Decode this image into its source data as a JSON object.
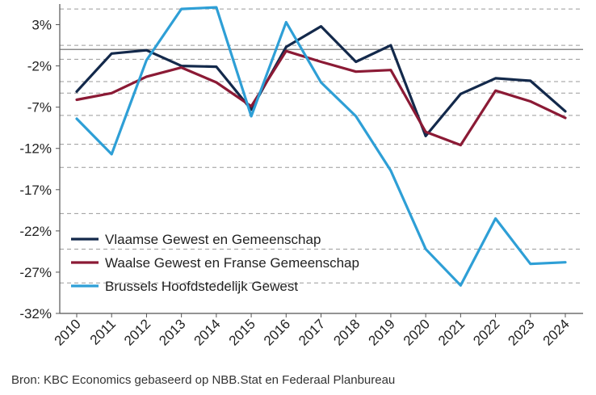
{
  "chart_data": {
    "type": "line",
    "title": "",
    "xlabel": "",
    "ylabel": "",
    "ylim": [
      -32,
      5.5
    ],
    "y_ticks": [
      3,
      -2,
      -7,
      -12,
      -17,
      -22,
      -27,
      -32
    ],
    "y_tick_labels": [
      "3%",
      "-2%",
      "-7%",
      "-12%",
      "-17%",
      "-22%",
      "-27%",
      "-32%"
    ],
    "categories": [
      "2010",
      "2011",
      "2012",
      "2013",
      "2014",
      "2015",
      "2016",
      "2017",
      "2018",
      "2019",
      "2020",
      "2021",
      "2022",
      "2023",
      "2024"
    ],
    "reference_line": 0,
    "dashed_gridlines": [
      4.9,
      0.5,
      -1.2,
      -3.9,
      -5.3,
      -8.0,
      -11.5,
      -14.3,
      -19.9,
      -24.2,
      -28.3
    ],
    "legend_position": "lower-left",
    "series": [
      {
        "name": "Vlaamse Gewest en Gemeenschap",
        "color": "#13294b",
        "values": [
          -5.1,
          -0.5,
          -0.1,
          -2.0,
          -2.1,
          -7.3,
          0.3,
          2.8,
          -1.5,
          0.5,
          -10.5,
          -5.4,
          -3.5,
          -3.8,
          -7.5
        ]
      },
      {
        "name": "Waalse Gewest en Franse Gemeenschap",
        "color": "#8b1a35",
        "values": [
          -6.1,
          -5.3,
          -3.3,
          -2.2,
          -4.0,
          -6.9,
          -0.2,
          -1.5,
          -2.7,
          -2.5,
          -10.0,
          -11.6,
          -5.0,
          -6.3,
          -8.3
        ]
      },
      {
        "name": "Brussels Hoofdstedelijk Gewest",
        "color": "#2e9fd6",
        "values": [
          -8.4,
          -12.7,
          -1.3,
          4.9,
          5.1,
          -8.1,
          3.3,
          -4.0,
          -8.1,
          -14.7,
          -24.2,
          -28.6,
          -20.5,
          -26.0,
          -25.8
        ]
      }
    ]
  },
  "source": "Bron: KBC Economics gebaseerd op NBB.Stat en Federaal Planbureau"
}
